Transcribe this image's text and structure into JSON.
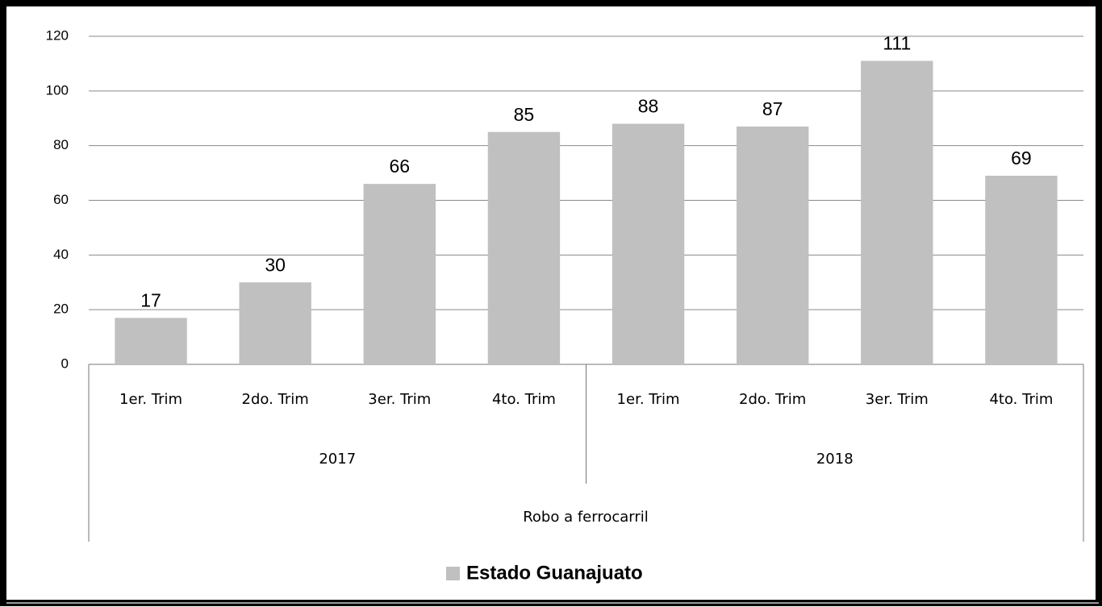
{
  "chart_data": {
    "type": "bar",
    "groups": [
      {
        "name": "2017",
        "categories": [
          "1er. Trim",
          "2do. Trim",
          "3er. Trim",
          "4to. Trim"
        ]
      },
      {
        "name": "2018",
        "categories": [
          "1er. Trim",
          "2do. Trim",
          "3er. Trim",
          "4to. Trim"
        ]
      }
    ],
    "xlabel": "Robo a ferrocarril",
    "series": [
      {
        "name": "Estado Guanajuato",
        "color": "#c0c0c0",
        "values": [
          17,
          30,
          66,
          85,
          88,
          87,
          111,
          69
        ]
      }
    ],
    "ylim": [
      0,
      120
    ],
    "yticks": [
      0,
      20,
      40,
      60,
      80,
      100,
      120
    ],
    "grid": true,
    "legend": "bottom"
  }
}
